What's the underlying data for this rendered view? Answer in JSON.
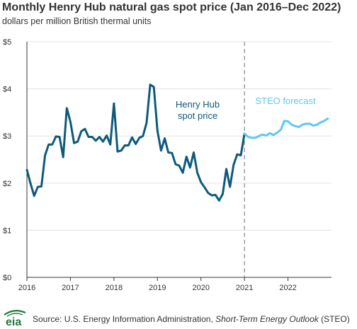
{
  "title": "Monthly Henry Hub natural gas spot price (Jan 2016–Dec 2022)",
  "subtitle": "dollars per million British thermal units",
  "source": {
    "prefix": "Source: U.S. Energy Information Administration, ",
    "italic": "Short-Term Energy Outlook",
    "suffix": " (STEO)"
  },
  "logo_text": "eia",
  "colors": {
    "history": "#0e5a7c",
    "forecast": "#5ec8f0",
    "divider": "#888888",
    "grid": "#e3e3e3",
    "logo": "#1f7a3a"
  },
  "chart_data": {
    "type": "line",
    "xlabel": "",
    "ylabel": "",
    "ylim": [
      0,
      5
    ],
    "xlim": [
      "2016-01",
      "2022-12"
    ],
    "grid": true,
    "y_ticks": [
      "$0",
      "$1",
      "$2",
      "$3",
      "$4",
      "$5"
    ],
    "x_ticks": [
      "2016",
      "2017",
      "2018",
      "2019",
      "2020",
      "2021",
      "2022"
    ],
    "divider_at": "2021-01",
    "annotations": [
      {
        "text": [
          "Henry Hub",
          "spot price"
        ],
        "series": "history"
      },
      {
        "text": [
          "STEO forecast"
        ],
        "series": "forecast"
      }
    ],
    "series": [
      {
        "id": "history",
        "start": "2016-01",
        "values": [
          2.28,
          1.99,
          1.73,
          1.92,
          1.93,
          2.59,
          2.82,
          2.82,
          2.99,
          2.98,
          2.55,
          3.59,
          3.3,
          2.85,
          2.88,
          3.1,
          3.15,
          2.98,
          2.98,
          2.9,
          2.98,
          2.88,
          3.01,
          2.82,
          3.69,
          2.67,
          2.69,
          2.8,
          2.8,
          2.97,
          2.83,
          2.96,
          3.0,
          3.28,
          4.09,
          4.04,
          3.11,
          2.69,
          2.95,
          2.65,
          2.64,
          2.4,
          2.37,
          2.22,
          2.56,
          2.33,
          2.65,
          2.22,
          2.02,
          1.91,
          1.79,
          1.74,
          1.75,
          1.63,
          1.77,
          2.3,
          1.92,
          2.39,
          2.61,
          2.59,
          3.05
        ]
      },
      {
        "id": "forecast",
        "start": "2021-01",
        "values": [
          3.05,
          2.98,
          2.96,
          2.96,
          3.0,
          3.03,
          3.01,
          3.06,
          3.02,
          3.07,
          3.13,
          3.32,
          3.31,
          3.24,
          3.21,
          3.19,
          3.24,
          3.26,
          3.26,
          3.22,
          3.24,
          3.29,
          3.32,
          3.37
        ]
      }
    ]
  }
}
